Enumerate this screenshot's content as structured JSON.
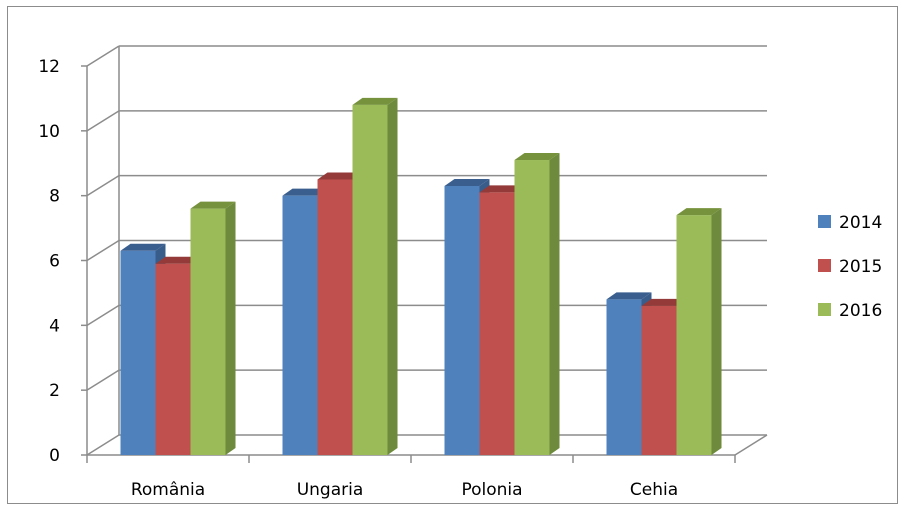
{
  "chart_data": {
    "type": "bar",
    "style": "3d-clustered-column",
    "categories": [
      "România",
      "Ungaria",
      "Polonia",
      "Cehia"
    ],
    "series": [
      {
        "name": "2014",
        "values": [
          6.3,
          8.0,
          8.3,
          4.8
        ],
        "color": "#4F81BD",
        "side": "#385D8A",
        "top": "#3A5F8F"
      },
      {
        "name": "2015",
        "values": [
          5.9,
          8.5,
          8.1,
          4.6
        ],
        "color": "#C0504D",
        "side": "#8C3836",
        "top": "#943B39"
      },
      {
        "name": "2016",
        "values": [
          7.6,
          10.8,
          9.1,
          7.4
        ],
        "color": "#9BBB59",
        "side": "#6E8A3C",
        "top": "#76923C"
      }
    ],
    "y_ticks": [
      "0",
      "2",
      "4",
      "6",
      "8",
      "10",
      "12"
    ],
    "ylim": [
      0,
      12
    ],
    "grid": true,
    "legend_position": "right"
  }
}
